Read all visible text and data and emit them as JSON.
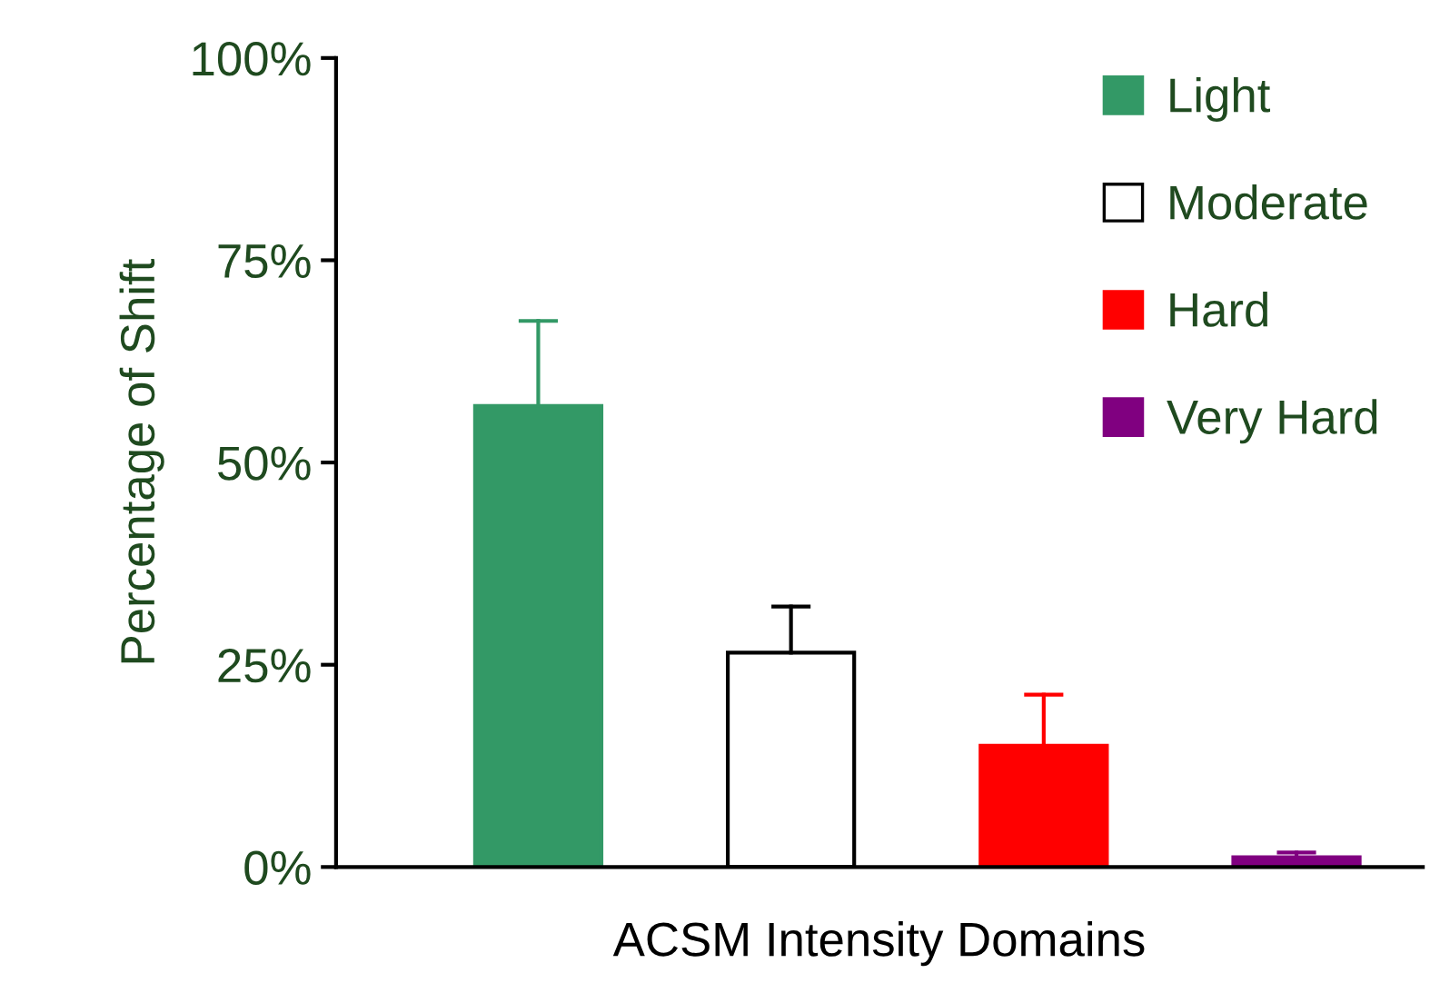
{
  "chart_data": {
    "type": "bar",
    "xlabel": "ACSM Intensity Domains",
    "ylabel": "Percentage of Shift",
    "categories": [
      null,
      null,
      null,
      null
    ],
    "series": [
      {
        "name": "Light",
        "color": "#339966",
        "values": [
          57,
          null,
          null,
          null
        ],
        "errors": [
          [
            57,
            67.5
          ],
          null,
          null,
          null
        ]
      },
      {
        "name": "Moderate",
        "color": "#ffffff",
        "values": [
          null,
          26.5,
          null,
          null
        ],
        "errors": [
          null,
          [
            26.5,
            32.2
          ],
          null,
          null
        ]
      },
      {
        "name": "Hard",
        "color": "#ff0000",
        "values": [
          null,
          null,
          15,
          null
        ],
        "errors": [
          null,
          null,
          [
            15,
            21.3
          ],
          null
        ]
      },
      {
        "name": "Very Hard",
        "color": "#800080",
        "values": [
          null,
          null,
          null,
          1.2
        ],
        "errors": [
          null,
          null,
          null,
          [
            1.2,
            1.8
          ]
        ]
      }
    ],
    "ylim": [
      0,
      100
    ],
    "yticks": [
      {
        "value": 0,
        "label": "0%"
      },
      {
        "value": 25,
        "label": "25%"
      },
      {
        "value": 50,
        "label": "50%"
      },
      {
        "value": 75,
        "label": "75%"
      },
      {
        "value": 100,
        "label": "100%"
      }
    ],
    "grid": false,
    "legend": "top right"
  }
}
